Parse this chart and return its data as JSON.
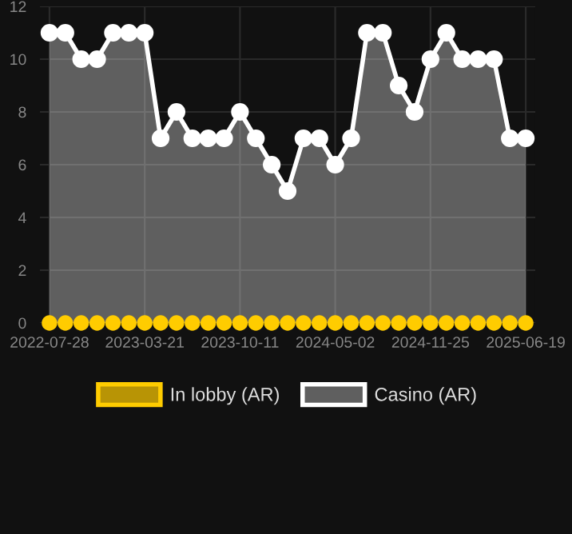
{
  "chart_data": {
    "type": "area",
    "categories": [
      "2022-07-28",
      null,
      null,
      null,
      null,
      null,
      "2023-03-21",
      null,
      null,
      null,
      null,
      null,
      "2023-10-11",
      null,
      null,
      null,
      null,
      null,
      "2024-05-02",
      null,
      null,
      null,
      null,
      null,
      "2024-11-25",
      null,
      null,
      null,
      null,
      null,
      "2025-06-19"
    ],
    "series": [
      {
        "name": "In lobby (AR)",
        "type": "scatter",
        "color": "#ffcc00",
        "values": [
          0,
          0,
          0,
          0,
          0,
          0,
          0,
          0,
          0,
          0,
          0,
          0,
          0,
          0,
          0,
          0,
          0,
          0,
          0,
          0,
          0,
          0,
          0,
          0,
          0,
          0,
          0,
          0,
          0,
          0,
          0
        ]
      },
      {
        "name": "Casino (AR)",
        "color": "#ffffff",
        "values": [
          11,
          11,
          10,
          10,
          11,
          11,
          11,
          7,
          8,
          7,
          7,
          7,
          8,
          7,
          6,
          5,
          7,
          7,
          6,
          7,
          11,
          11,
          9,
          8,
          10,
          11,
          10,
          10,
          10,
          7,
          7
        ]
      }
    ],
    "ylim": [
      0,
      12
    ],
    "yticks": [
      0,
      2,
      4,
      6,
      8,
      10,
      12
    ],
    "grid": true,
    "legend": "bottom",
    "marker": "circle",
    "line_style": "solid"
  }
}
